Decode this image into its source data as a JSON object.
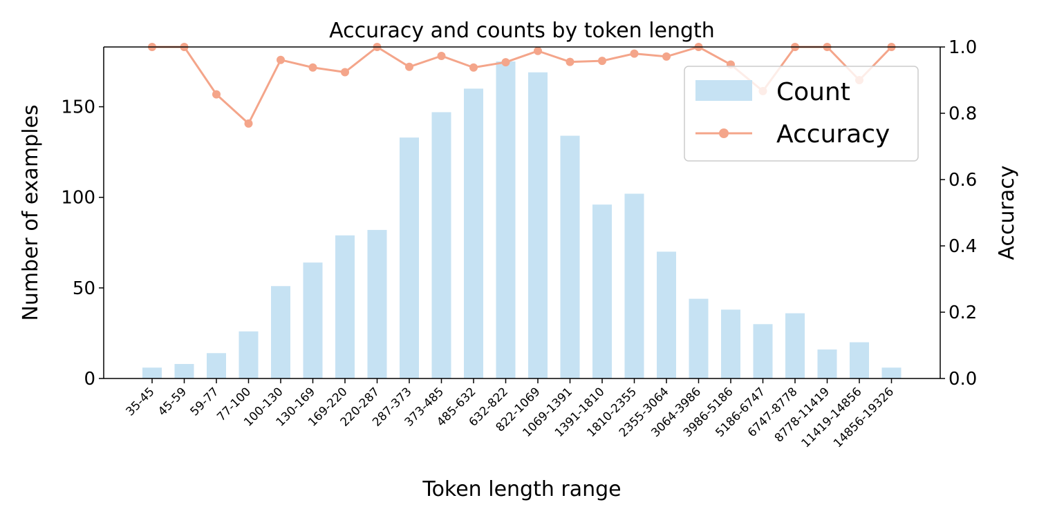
{
  "chart_data": {
    "type": "bar",
    "title": "Accuracy and counts by token length",
    "xlabel": "Token length range",
    "ylabel": "Number of examples",
    "y2label": "Accuracy",
    "ylim": [
      0,
      183
    ],
    "y2lim": [
      0,
      1.0
    ],
    "yticks": [
      "0",
      "50",
      "100",
      "150"
    ],
    "y2ticks": [
      "0.0",
      "0.2",
      "0.4",
      "0.6",
      "0.8",
      "1.0"
    ],
    "grid": false,
    "legend_position": "top-right",
    "categories": [
      "35-45",
      "45-59",
      "59-77",
      "77-100",
      "100-130",
      "130-169",
      "169-220",
      "220-287",
      "287-373",
      "373-485",
      "485-632",
      "632-822",
      "822-1069",
      "1069-1391",
      "1391-1810",
      "1810-2355",
      "2355-3064",
      "3064-3986",
      "3986-5186",
      "5186-6747",
      "6747-8778",
      "8778-11419",
      "11419-14856",
      "14856-19326"
    ],
    "series": [
      {
        "name": "Count",
        "type": "bar",
        "axis": "left",
        "color": "#c6e2f3",
        "values": [
          6,
          8,
          14,
          26,
          51,
          64,
          79,
          82,
          133,
          147,
          160,
          175,
          169,
          134,
          96,
          102,
          70,
          44,
          38,
          30,
          36,
          16,
          20,
          6
        ]
      },
      {
        "name": "Accuracy",
        "type": "line",
        "axis": "right",
        "color": "#f4a58a",
        "values": [
          1.0,
          1.0,
          0.857,
          0.769,
          0.961,
          0.938,
          0.924,
          1.0,
          0.94,
          0.973,
          0.938,
          0.954,
          0.988,
          0.955,
          0.958,
          0.98,
          0.971,
          1.0,
          0.947,
          0.867,
          1.0,
          1.0,
          0.9,
          1.0
        ]
      }
    ]
  }
}
